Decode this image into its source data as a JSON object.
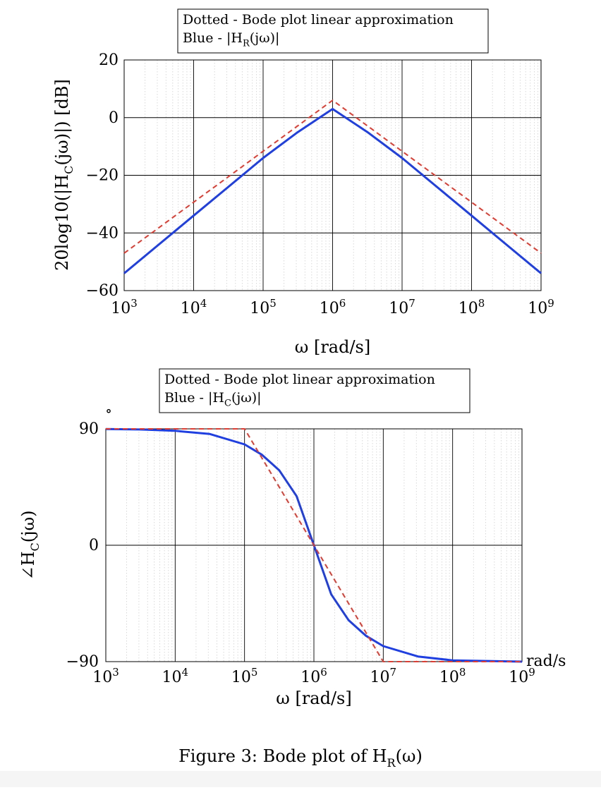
{
  "figure_caption": "Figure 3: Bode plot of H_R(ω)",
  "chart_data": [
    {
      "type": "line",
      "title": "",
      "legend": {
        "placement": "top",
        "lines": [
          "Dotted - Bode plot linear approximation",
          "Blue - |H_R(jω)|"
        ]
      },
      "xlabel": "ω [rad/s]",
      "ylabel": "20log10(|H_C(jω)|) [dB]",
      "x_scale": "log",
      "xlim": [
        1000,
        1000000000
      ],
      "ylim": [
        -60,
        20
      ],
      "x_tick_labels": [
        "10^3",
        "10^4",
        "10^5",
        "10^6",
        "10^7",
        "10^8",
        "10^9"
      ],
      "y_tick_labels": [
        "20",
        "0",
        "−20",
        "−40",
        "−60"
      ],
      "grid": true,
      "series": [
        {
          "color": "#1f3fe0",
          "style": "solid",
          "x": [
            1000,
            3162,
            10000,
            31623,
            100000,
            316228,
            1000000,
            3162278,
            10000000,
            31622777,
            100000000,
            316227766,
            1000000000
          ],
          "y": [
            -54,
            -44,
            -34,
            -24,
            -14,
            -5,
            3,
            -5,
            -14,
            -24,
            -34,
            -44,
            -54
          ]
        },
        {
          "color": "#e03c31",
          "style": "dashed",
          "x": [
            1000,
            1000000,
            1000000000
          ],
          "y": [
            -47,
            6,
            -47
          ]
        }
      ]
    },
    {
      "type": "line",
      "title": "",
      "legend": {
        "placement": "top",
        "lines": [
          "Dotted - Bode plot linear approximation",
          "Blue - |H_C(jω)|"
        ]
      },
      "unit_mark": "∘",
      "xlabel": "ω [rad/s]",
      "x_axis_unit": "rad/s",
      "ylabel": "∠H_C(jω)",
      "x_scale": "log",
      "xlim": [
        1000,
        1000000000
      ],
      "ylim": [
        -90,
        90
      ],
      "x_tick_labels": [
        "10^3",
        "10^4",
        "10^5",
        "10^6",
        "10^7",
        "10^8",
        "10^9"
      ],
      "y_tick_labels": [
        "90",
        "0",
        "−90"
      ],
      "grid": true,
      "series": [
        {
          "color": "#1f3fe0",
          "style": "solid",
          "x": [
            1000,
            3162,
            10000,
            31623,
            100000,
            177828,
            316228,
            562341,
            1000000,
            1778279,
            3162278,
            5623413,
            10000000,
            31622777,
            100000000,
            1000000000
          ],
          "y": [
            89.9,
            89.5,
            88.5,
            86,
            78,
            70,
            58,
            38,
            0,
            -38,
            -58,
            -70,
            -78,
            -86,
            -89,
            -90
          ]
        },
        {
          "color": "#e03c31",
          "style": "dashed",
          "x": [
            1000,
            100000,
            10000000,
            1000000000
          ],
          "y": [
            90,
            90,
            -90,
            -90
          ]
        }
      ]
    }
  ]
}
